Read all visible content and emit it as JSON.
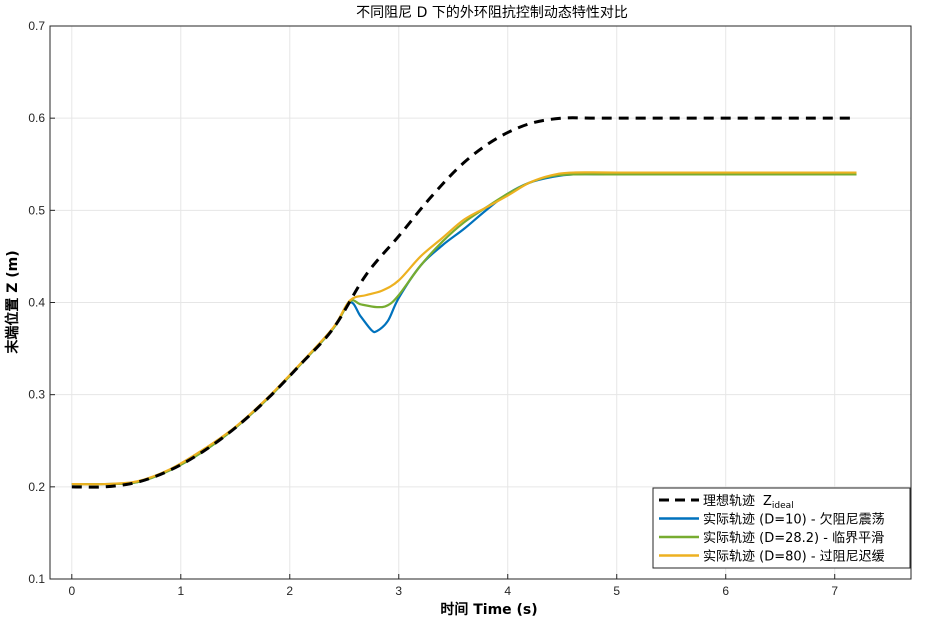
{
  "chart_data": {
    "type": "line",
    "title": "不同阻尼 D 下的外环阻抗控制动态特性对比",
    "xlabel": "时间 Time (s)",
    "ylabel": "末端位置 Z (m)",
    "xlim": [
      -0.2,
      7.7
    ],
    "ylim": [
      0.1,
      0.7
    ],
    "xticks": [
      0,
      1,
      2,
      3,
      4,
      5,
      6,
      7
    ],
    "yticks": [
      0.1,
      0.2,
      0.3,
      0.4,
      0.5,
      0.6,
      0.7
    ],
    "xtick_labels": [
      "0",
      "1",
      "2",
      "3",
      "4",
      "5",
      "6",
      "7"
    ],
    "ytick_labels": [
      "0.1",
      "0.2",
      "0.3",
      "0.4",
      "0.5",
      "0.6",
      "0.7"
    ],
    "grid": true,
    "legend_position": "bottom-right",
    "series": [
      {
        "name": "理想轨迹",
        "name_subscript_base": "Z",
        "name_subscript": "ideal",
        "color": "#000000",
        "style": "dashed",
        "x": [
          0,
          0.3,
          0.6,
          0.9,
          1.2,
          1.5,
          1.8,
          2.1,
          2.4,
          2.7,
          3.0,
          3.3,
          3.6,
          3.9,
          4.2,
          4.5,
          4.8,
          5.2,
          6.0,
          7.2
        ],
        "y": [
          0.2,
          0.2,
          0.205,
          0.218,
          0.238,
          0.264,
          0.296,
          0.333,
          0.372,
          0.43,
          0.472,
          0.515,
          0.552,
          0.578,
          0.594,
          0.6,
          0.6,
          0.6,
          0.6,
          0.6
        ]
      },
      {
        "name": "实际轨迹 (D=10) - 欠阻尼震荡",
        "color": "#0072BD",
        "style": "solid",
        "x": [
          0,
          0.3,
          0.6,
          0.9,
          1.2,
          1.5,
          1.8,
          2.1,
          2.4,
          2.55,
          2.65,
          2.75,
          2.8,
          2.9,
          3.0,
          3.2,
          3.4,
          3.6,
          3.8,
          4.0,
          4.2,
          4.4,
          4.6,
          5.0,
          6.0,
          7.2
        ],
        "y": [
          0.203,
          0.203,
          0.205,
          0.218,
          0.238,
          0.264,
          0.296,
          0.333,
          0.372,
          0.4,
          0.385,
          0.37,
          0.369,
          0.38,
          0.405,
          0.44,
          0.462,
          0.48,
          0.5,
          0.518,
          0.53,
          0.536,
          0.539,
          0.539,
          0.539,
          0.539
        ]
      },
      {
        "name": "实际轨迹 (D=28.2) - 临界平滑",
        "color": "#77AC30",
        "style": "solid",
        "x": [
          0,
          0.3,
          0.6,
          0.9,
          1.2,
          1.5,
          1.8,
          2.1,
          2.4,
          2.55,
          2.65,
          2.8,
          2.9,
          3.0,
          3.2,
          3.4,
          3.6,
          3.8,
          4.0,
          4.2,
          4.4,
          4.6,
          5.0,
          6.0,
          7.2
        ],
        "y": [
          0.203,
          0.203,
          0.205,
          0.218,
          0.238,
          0.264,
          0.296,
          0.333,
          0.372,
          0.401,
          0.398,
          0.395,
          0.397,
          0.408,
          0.44,
          0.466,
          0.487,
          0.503,
          0.518,
          0.53,
          0.537,
          0.539,
          0.539,
          0.539,
          0.539
        ]
      },
      {
        "name": "实际轨迹 (D=80) - 过阻尼迟缓",
        "color": "#EDB120",
        "style": "solid",
        "x": [
          0,
          0.3,
          0.6,
          0.9,
          1.2,
          1.5,
          1.8,
          2.1,
          2.4,
          2.55,
          2.7,
          2.85,
          3.0,
          3.2,
          3.4,
          3.6,
          3.8,
          4.0,
          4.2,
          4.4,
          4.6,
          5.0,
          6.0,
          7.2
        ],
        "y": [
          0.203,
          0.203,
          0.206,
          0.219,
          0.24,
          0.265,
          0.297,
          0.334,
          0.373,
          0.402,
          0.408,
          0.413,
          0.424,
          0.45,
          0.47,
          0.49,
          0.503,
          0.516,
          0.53,
          0.538,
          0.541,
          0.541,
          0.541,
          0.541
        ]
      }
    ]
  }
}
